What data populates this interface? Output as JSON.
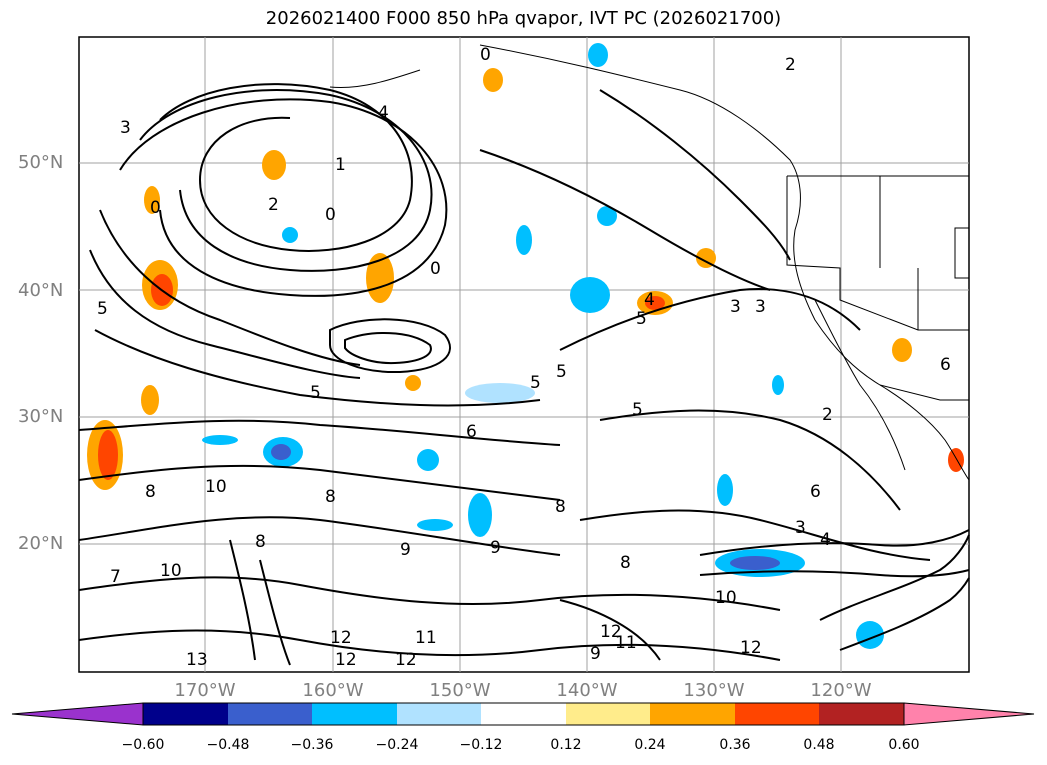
{
  "title": "2026021400 F000 850 hPa qvapor, IVT PC (2026021700)",
  "lat_labels": [
    "50°N",
    "40°N",
    "30°N",
    "20°N"
  ],
  "lon_labels": [
    "170°W",
    "160°W",
    "150°W",
    "140°W",
    "130°W",
    "120°W"
  ],
  "colorbar": {
    "ticks": [
      "−0.60",
      "−0.48",
      "−0.36",
      "−0.24",
      "−0.12",
      "0.12",
      "0.24",
      "0.36",
      "0.48",
      "0.60"
    ],
    "colors": [
      "#9a32cd",
      "#00008b",
      "#3a5fcd",
      "#00bfff",
      "#b0e2ff",
      "#ffffff",
      "#ffec8b",
      "#ffa500",
      "#ff4500",
      "#b22222",
      "#ff82ab"
    ]
  },
  "contour_labels": [
    "2",
    "3",
    "4",
    "1",
    "2",
    "0",
    "0",
    "0",
    "5",
    "5",
    "5",
    "5",
    "5",
    "3",
    "3",
    "4",
    "5",
    "2",
    "6",
    "6",
    "8",
    "8",
    "8",
    "10",
    "10",
    "9",
    "9",
    "12",
    "12",
    "11",
    "12",
    "13",
    "12",
    "10",
    "8",
    "3",
    "4",
    "0",
    "8",
    "9",
    "11",
    "12",
    "7",
    "6"
  ]
}
